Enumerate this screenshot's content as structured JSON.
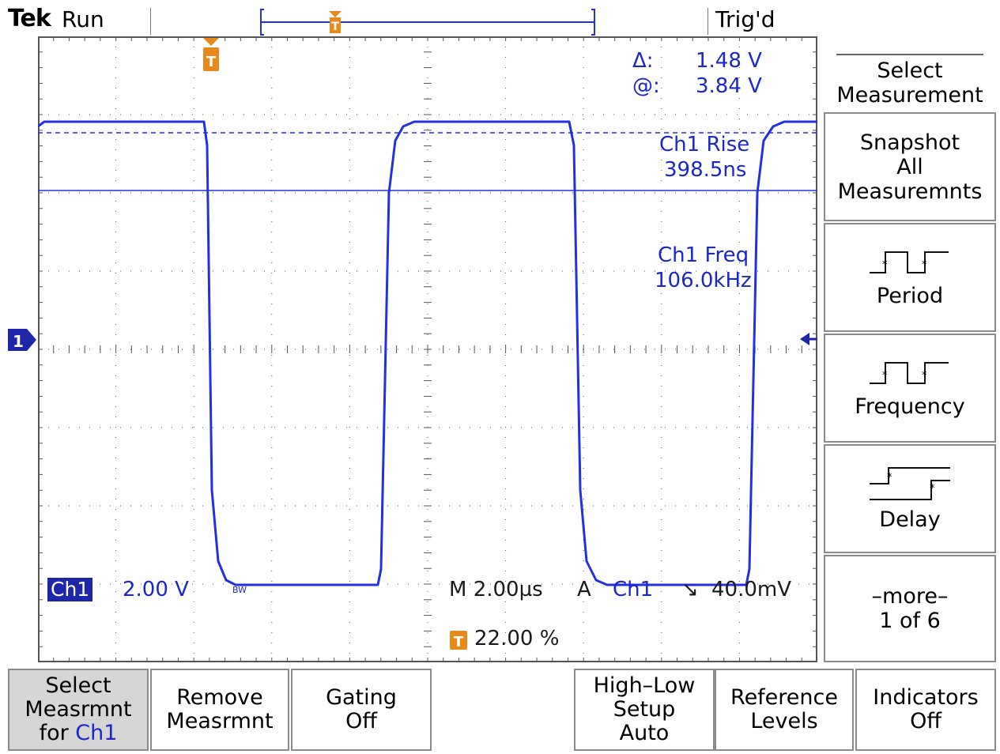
{
  "header": {
    "brand": "Tek",
    "run_state": "Run",
    "trigger_state": "Trig'd",
    "trigger_marker_label": "T"
  },
  "cursor_readout": {
    "delta_label": "Δ:",
    "delta_value": "1.48 V",
    "at_label": "@:",
    "at_value": "3.84 V"
  },
  "measurements": [
    {
      "name": "Ch1 Rise",
      "value": "398.5ns"
    },
    {
      "name": "Ch1 Freq",
      "value": "106.0kHz"
    }
  ],
  "channel": {
    "marker": "1",
    "label": "Ch1",
    "scale": "2.00 V",
    "bw_badge": "BW"
  },
  "timebase": {
    "label": "M 2.00µs",
    "trigger_mode": "A",
    "trigger_source": "Ch1",
    "trigger_slope": "↘",
    "trigger_level": "40.0mV"
  },
  "trigger_position": {
    "icon": "T",
    "value": "22.00 %"
  },
  "side_menu": {
    "title": "Select\nMeasurement",
    "buttons": [
      {
        "label": "Snapshot\nAll\nMeasuremnts"
      },
      {
        "label": "Period",
        "icon": "period-waveform-icon"
      },
      {
        "label": "Frequency",
        "icon": "frequency-waveform-icon"
      },
      {
        "label": "Delay",
        "icon": "delay-waveform-icon"
      },
      {
        "label": "–more–\n1 of 6"
      }
    ]
  },
  "bottom_menu": {
    "select_prefix": "Select\nMeasrmnt\nfor ",
    "select_channel": "Ch1",
    "remove": "Remove\nMeasrmnt",
    "gating": "Gating\nOff",
    "highlow": "High–Low\nSetup\nAuto",
    "reference": "Reference\nLevels",
    "indicators": "Indicators\nOff"
  },
  "colors": {
    "trace": "#2430e0",
    "accent": "#e8891c",
    "grid": "#555555"
  }
}
